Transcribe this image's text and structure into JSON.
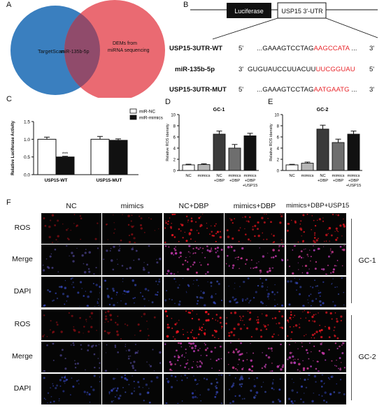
{
  "panels": {
    "A": {
      "letter": "A",
      "left_circle_label": "TargetScan",
      "overlap_label": "miR-135b-5p",
      "right_circle_label_line1": "DEMs from",
      "right_circle_label_line2": "miRNA sequencing",
      "colors": {
        "left": "#3a7fbf",
        "right": "#ea6a72",
        "overlap": "#8b4a6a"
      }
    },
    "B": {
      "letter": "B",
      "luciferase_label": "Luciferase",
      "utr_label": "USP15 3'-UTR",
      "rows": [
        {
          "label": "USP15-3UTR-WT",
          "prime_left": "5'",
          "seq_black": "...GAAAGTCCTAG",
          "seq_red": "AAGCCATA",
          "seq_tail": " ...",
          "prime_right": "3'"
        },
        {
          "label": "miR-135b-5p",
          "prime_left": "3'",
          "seq_black": "GUGUAUCCUUACUU",
          "seq_red": "UUCGGUAU",
          "seq_tail": "",
          "prime_right": "5'"
        },
        {
          "label": "USP15-3UTR-MUT",
          "prime_left": "5'",
          "seq_black": "...GAAAGTCCTAG",
          "seq_red": "AATGAATG",
          "seq_tail": " ...",
          "prime_right": "3'"
        }
      ]
    },
    "C": {
      "letter": "C"
    },
    "D": {
      "letter": "D"
    },
    "E": {
      "letter": "E"
    },
    "F": {
      "letter": "F",
      "columns": [
        "NC",
        "mimics",
        "NC+DBP",
        "mimics+DBP",
        "mimics+DBP+USP15"
      ],
      "rows": [
        "ROS",
        "Merge",
        "DAPI",
        "ROS",
        "Merge",
        "DAPI"
      ],
      "groups": [
        "GC-1",
        "GC-2"
      ]
    }
  },
  "chart_data": [
    {
      "id": "C",
      "type": "bar",
      "ylabel": "Relative Luciferase Activity",
      "categories": [
        "USP15-WT",
        "USP15-MUT"
      ],
      "series": [
        {
          "name": "miR-NC",
          "color": "#ffffff",
          "values": [
            1.0,
            1.0
          ],
          "errors": [
            0.06,
            0.08
          ]
        },
        {
          "name": "miR-mimics",
          "color": "#111111",
          "values": [
            0.5,
            0.97
          ],
          "errors": [
            0.02,
            0.04
          ]
        }
      ],
      "ylim": [
        0,
        1.5
      ],
      "yticks": [
        "0.0",
        "0.5",
        "1.0",
        "1.5"
      ],
      "annotations": [
        "***"
      ],
      "legend_position": "top-right"
    },
    {
      "id": "D",
      "type": "bar",
      "title": "GC-1",
      "ylabel": "Relative ROS idensity",
      "categories": [
        "NC",
        "mimics",
        "NC\n+DBP",
        "mimics\n+DBP",
        "mimics\n+DBP\n+USP15"
      ],
      "values": [
        1.0,
        1.05,
        6.5,
        4.0,
        6.2
      ],
      "errors": [
        0.12,
        0.15,
        0.55,
        0.65,
        0.45
      ],
      "colors": [
        "#ffffff",
        "#b5b5b5",
        "#3a3a3a",
        "#6e6e6e",
        "#111111"
      ],
      "ylim": [
        0,
        10
      ],
      "yticks": [
        "0",
        "2",
        "4",
        "6",
        "8",
        "10"
      ]
    },
    {
      "id": "E",
      "type": "bar",
      "title": "GC-2",
      "ylabel": "Relative ROS idensity",
      "categories": [
        "NC",
        "mimics",
        "NC\n+DBP",
        "mimics\n+DBP",
        "mimics\n+DBP\n+USP15"
      ],
      "values": [
        1.0,
        1.3,
        7.4,
        5.0,
        6.5
      ],
      "errors": [
        0.1,
        0.2,
        0.7,
        0.6,
        0.55
      ],
      "colors": [
        "#ffffff",
        "#b5b5b5",
        "#3a3a3a",
        "#6e6e6e",
        "#111111"
      ],
      "ylim": [
        0,
        10
      ],
      "yticks": [
        "0",
        "2",
        "4",
        "6",
        "8",
        "10"
      ]
    }
  ]
}
